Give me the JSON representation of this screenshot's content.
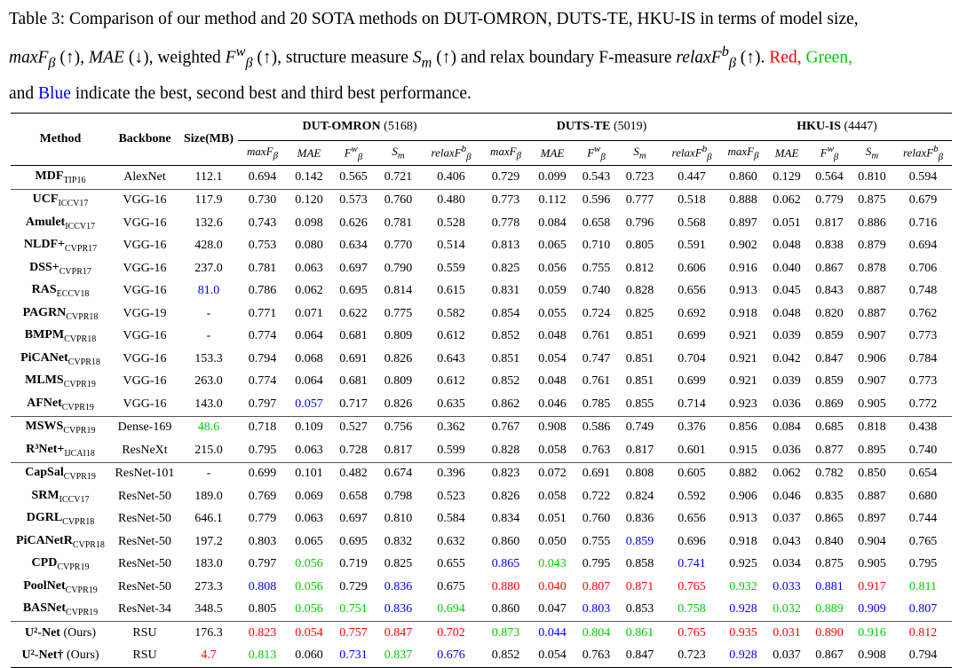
{
  "caption": {
    "prefix": "Table 3: Comparison of our method and 20 SOTA methods on DUT-OMRON, DUTS-TE, HKU-IS in terms of model size,",
    "m1": "maxF",
    "m1_sub": "β",
    "s1": " (↑), ",
    "m2": "MAE",
    "s2": " (↓), weighted ",
    "m3": "F",
    "m3_sup": "w",
    "m3_sub": "β",
    "s3": " (↑), structure measure ",
    "m4": "S",
    "m4_sub": "m",
    "s4": " (↑) and relax boundary F-measure ",
    "m5": "relaxF",
    "m5_sup": "b",
    "m5_sub": "β",
    "s5": " (↑). ",
    "red": "Red,",
    "green": "Green,",
    "line3_and": "and ",
    "blue": "Blue",
    "suffix": " indicate the best, second best and third best performance."
  },
  "table": {
    "col_method": "Method",
    "col_backbone": "Backbone",
    "col_size": "Size(MB)",
    "datasets": [
      {
        "name": "DUT-OMRON",
        "count": "(5168)"
      },
      {
        "name": "DUTS-TE",
        "count": "(5019)"
      },
      {
        "name": "HKU-IS",
        "count": "(4447)"
      }
    ],
    "metrics": [
      {
        "base": "maxF",
        "sup": "",
        "sub": "β"
      },
      {
        "base": "MAE",
        "sup": "",
        "sub": ""
      },
      {
        "base": "F",
        "sup": "w",
        "sub": "β"
      },
      {
        "base": "S",
        "sup": "",
        "sub": "m"
      },
      {
        "base": "relaxF",
        "sup": "b",
        "sub": "β"
      }
    ],
    "rows": [
      {
        "name": "MDF",
        "sub": "TIP16",
        "backbone": "AlexNet",
        "size": "112.1",
        "size_c": "",
        "v": [
          "0.694",
          "0.142",
          "0.565",
          "0.721",
          "0.406",
          "0.729",
          "0.099",
          "0.543",
          "0.723",
          "0.447",
          "0.860",
          "0.129",
          "0.564",
          "0.810",
          "0.594"
        ],
        "c": [
          "",
          "",
          "",
          "",
          "",
          "",
          "",
          "",
          "",
          "",
          "",
          "",
          "",
          "",
          ""
        ]
      },
      {
        "name": "UCF",
        "sub": "ICCV17",
        "backbone": "VGG-16",
        "size": "117.9",
        "size_c": "",
        "v": [
          "0.730",
          "0.120",
          "0.573",
          "0.760",
          "0.480",
          "0.773",
          "0.112",
          "0.596",
          "0.777",
          "0.518",
          "0.888",
          "0.062",
          "0.779",
          "0.875",
          "0.679"
        ],
        "c": [
          "",
          "",
          "",
          "",
          "",
          "",
          "",
          "",
          "",
          "",
          "",
          "",
          "",
          "",
          ""
        ]
      },
      {
        "name": "Amulet",
        "sub": "ICCV17",
        "backbone": "VGG-16",
        "size": "132.6",
        "size_c": "",
        "v": [
          "0.743",
          "0.098",
          "0.626",
          "0.781",
          "0.528",
          "0.778",
          "0.084",
          "0.658",
          "0.796",
          "0.568",
          "0.897",
          "0.051",
          "0.817",
          "0.886",
          "0.716"
        ],
        "c": [
          "",
          "",
          "",
          "",
          "",
          "",
          "",
          "",
          "",
          "",
          "",
          "",
          "",
          "",
          ""
        ]
      },
      {
        "name": "NLDF+",
        "sub": "CVPR17",
        "backbone": "VGG-16",
        "size": "428.0",
        "size_c": "",
        "v": [
          "0.753",
          "0.080",
          "0.634",
          "0.770",
          "0.514",
          "0.813",
          "0.065",
          "0.710",
          "0.805",
          "0.591",
          "0.902",
          "0.048",
          "0.838",
          "0.879",
          "0.694"
        ],
        "c": [
          "",
          "",
          "",
          "",
          "",
          "",
          "",
          "",
          "",
          "",
          "",
          "",
          "",
          "",
          ""
        ]
      },
      {
        "name": "DSS+",
        "sub": "CVPR17",
        "backbone": "VGG-16",
        "size": "237.0",
        "size_c": "",
        "v": [
          "0.781",
          "0.063",
          "0.697",
          "0.790",
          "0.559",
          "0.825",
          "0.056",
          "0.755",
          "0.812",
          "0.606",
          "0.916",
          "0.040",
          "0.867",
          "0.878",
          "0.706"
        ],
        "c": [
          "",
          "",
          "",
          "",
          "",
          "",
          "",
          "",
          "",
          "",
          "",
          "",
          "",
          "",
          ""
        ]
      },
      {
        "name": "RAS",
        "sub": "ECCV18",
        "backbone": "VGG-16",
        "size": "81.0",
        "size_c": "blue",
        "v": [
          "0.786",
          "0.062",
          "0.695",
          "0.814",
          "0.615",
          "0.831",
          "0.059",
          "0.740",
          "0.828",
          "0.656",
          "0.913",
          "0.045",
          "0.843",
          "0.887",
          "0.748"
        ],
        "c": [
          "",
          "",
          "",
          "",
          "",
          "",
          "",
          "",
          "",
          "",
          "",
          "",
          "",
          "",
          ""
        ]
      },
      {
        "name": "PAGRN",
        "sub": "CVPR18",
        "backbone": "VGG-19",
        "size": "-",
        "size_c": "",
        "v": [
          "0.771",
          "0.071",
          "0.622",
          "0.775",
          "0.582",
          "0.854",
          "0.055",
          "0.724",
          "0.825",
          "0.692",
          "0.918",
          "0.048",
          "0.820",
          "0.887",
          "0.762"
        ],
        "c": [
          "",
          "",
          "",
          "",
          "",
          "",
          "",
          "",
          "",
          "",
          "",
          "",
          "",
          "",
          ""
        ]
      },
      {
        "name": "BMPM",
        "sub": "CVPR18",
        "backbone": "VGG-16",
        "size": "-",
        "size_c": "",
        "v": [
          "0.774",
          "0.064",
          "0.681",
          "0.809",
          "0.612",
          "0.852",
          "0.048",
          "0.761",
          "0.851",
          "0.699",
          "0.921",
          "0.039",
          "0.859",
          "0.907",
          "0.773"
        ],
        "c": [
          "",
          "",
          "",
          "",
          "",
          "",
          "",
          "",
          "",
          "",
          "",
          "",
          "",
          "",
          ""
        ]
      },
      {
        "name": "PiCANet",
        "sub": "CVPR18",
        "backbone": "VGG-16",
        "size": "153.3",
        "size_c": "",
        "v": [
          "0.794",
          "0.068",
          "0.691",
          "0.826",
          "0.643",
          "0.851",
          "0.054",
          "0.747",
          "0.851",
          "0.704",
          "0.921",
          "0.042",
          "0.847",
          "0.906",
          "0.784"
        ],
        "c": [
          "",
          "",
          "",
          "",
          "",
          "",
          "",
          "",
          "",
          "",
          "",
          "",
          "",
          "",
          ""
        ]
      },
      {
        "name": "MLMS",
        "sub": "CVPR19",
        "backbone": "VGG-16",
        "size": "263.0",
        "size_c": "",
        "v": [
          "0.774",
          "0.064",
          "0.681",
          "0.809",
          "0.612",
          "0.852",
          "0.048",
          "0.761",
          "0.851",
          "0.699",
          "0.921",
          "0.039",
          "0.859",
          "0.907",
          "0.773"
        ],
        "c": [
          "",
          "",
          "",
          "",
          "",
          "",
          "",
          "",
          "",
          "",
          "",
          "",
          "",
          "",
          ""
        ]
      },
      {
        "name": "AFNet",
        "sub": "CVPR19",
        "backbone": "VGG-16",
        "size": "143.0",
        "size_c": "",
        "v": [
          "0.797",
          "0.057",
          "0.717",
          "0.826",
          "0.635",
          "0.862",
          "0.046",
          "0.785",
          "0.855",
          "0.714",
          "0.923",
          "0.036",
          "0.869",
          "0.905",
          "0.772"
        ],
        "c": [
          "",
          "blue",
          "",
          "",
          "",
          "",
          "",
          "",
          "",
          "",
          "",
          "",
          "",
          "",
          ""
        ]
      },
      {
        "name": "MSWS",
        "sub": "CVPR19",
        "backbone": "Dense-169",
        "size": "48.6",
        "size_c": "green",
        "v": [
          "0.718",
          "0.109",
          "0.527",
          "0.756",
          "0.362",
          "0.767",
          "0.908",
          "0.586",
          "0.749",
          "0.376",
          "0.856",
          "0.084",
          "0.685",
          "0.818",
          "0.438"
        ],
        "c": [
          "",
          "",
          "",
          "",
          "",
          "",
          "",
          "",
          "",
          "",
          "",
          "",
          "",
          "",
          ""
        ]
      },
      {
        "name": "R³Net+",
        "sub": "IJCAI18",
        "backbone": "ResNeXt",
        "size": "215.0",
        "size_c": "",
        "v": [
          "0.795",
          "0.063",
          "0.728",
          "0.817",
          "0.599",
          "0.828",
          "0.058",
          "0.763",
          "0.817",
          "0.601",
          "0.915",
          "0.036",
          "0.877",
          "0.895",
          "0.740"
        ],
        "c": [
          "",
          "",
          "",
          "",
          "",
          "",
          "",
          "",
          "",
          "",
          "",
          "",
          "",
          "",
          ""
        ]
      },
      {
        "name": "CapSal",
        "sub": "CVPR19",
        "backbone": "ResNet-101",
        "size": "-",
        "size_c": "",
        "v": [
          "0.699",
          "0.101",
          "0.482",
          "0.674",
          "0.396",
          "0.823",
          "0.072",
          "0.691",
          "0.808",
          "0.605",
          "0.882",
          "0.062",
          "0.782",
          "0.850",
          "0.654"
        ],
        "c": [
          "",
          "",
          "",
          "",
          "",
          "",
          "",
          "",
          "",
          "",
          "",
          "",
          "",
          "",
          ""
        ]
      },
      {
        "name": "SRM",
        "sub": "ICCV17",
        "backbone": "ResNet-50",
        "size": "189.0",
        "size_c": "",
        "v": [
          "0.769",
          "0.069",
          "0.658",
          "0.798",
          "0.523",
          "0.826",
          "0.058",
          "0.722",
          "0.824",
          "0.592",
          "0.906",
          "0.046",
          "0.835",
          "0.887",
          "0.680"
        ],
        "c": [
          "",
          "",
          "",
          "",
          "",
          "",
          "",
          "",
          "",
          "",
          "",
          "",
          "",
          "",
          ""
        ]
      },
      {
        "name": "DGRL",
        "sub": "CVPR18",
        "backbone": "ResNet-50",
        "size": "646.1",
        "size_c": "",
        "v": [
          "0.779",
          "0.063",
          "0.697",
          "0.810",
          "0.584",
          "0.834",
          "0.051",
          "0.760",
          "0.836",
          "0.656",
          "0.913",
          "0.037",
          "0.865",
          "0.897",
          "0.744"
        ],
        "c": [
          "",
          "",
          "",
          "",
          "",
          "",
          "",
          "",
          "",
          "",
          "",
          "",
          "",
          "",
          ""
        ]
      },
      {
        "name": "PiCANetR",
        "sub": "CVPR18",
        "backbone": "ResNet-50",
        "size": "197.2",
        "size_c": "",
        "v": [
          "0.803",
          "0.065",
          "0.695",
          "0.832",
          "0.632",
          "0.860",
          "0.050",
          "0.755",
          "0.859",
          "0.696",
          "0.918",
          "0.043",
          "0.840",
          "0.904",
          "0.765"
        ],
        "c": [
          "",
          "",
          "",
          "",
          "",
          "",
          "",
          "",
          "blue",
          "",
          "",
          "",
          "",
          "",
          ""
        ]
      },
      {
        "name": "CPD",
        "sub": "CVPR19",
        "backbone": "ResNet-50",
        "size": "183.0",
        "size_c": "",
        "v": [
          "0.797",
          "0.056",
          "0.719",
          "0.825",
          "0.655",
          "0.865",
          "0.043",
          "0.795",
          "0.858",
          "0.741",
          "0.925",
          "0.034",
          "0.875",
          "0.905",
          "0.795"
        ],
        "c": [
          "",
          "green",
          "",
          "",
          "",
          "blue",
          "green",
          "",
          "",
          "blue",
          "",
          "",
          "",
          "",
          ""
        ]
      },
      {
        "name": "PoolNet",
        "sub": "CVPR19",
        "backbone": "ResNet-50",
        "size": "273.3",
        "size_c": "",
        "v": [
          "0.808",
          "0.056",
          "0.729",
          "0.836",
          "0.675",
          "0.880",
          "0.040",
          "0.807",
          "0.871",
          "0.765",
          "0.932",
          "0.033",
          "0.881",
          "0.917",
          "0.811"
        ],
        "c": [
          "blue",
          "green",
          "",
          "blue",
          "",
          "red",
          "red",
          "red",
          "red",
          "red",
          "green",
          "blue",
          "blue",
          "red",
          "green"
        ]
      },
      {
        "name": "BASNet",
        "sub": "CVPR19",
        "backbone": "ResNet-34",
        "size": "348.5",
        "size_c": "",
        "v": [
          "0.805",
          "0.056",
          "0.751",
          "0.836",
          "0.694",
          "0.860",
          "0.047",
          "0.803",
          "0.853",
          "0.758",
          "0.928",
          "0.032",
          "0.889",
          "0.909",
          "0.807"
        ],
        "c": [
          "",
          "green",
          "green",
          "blue",
          "green",
          "",
          "",
          "blue",
          "",
          "green",
          "blue",
          "green",
          "green",
          "blue",
          "blue"
        ]
      },
      {
        "name": "U²-Net",
        "sub": "",
        "suffix": " (Ours)",
        "backbone": "RSU",
        "size": "176.3",
        "size_c": "",
        "v": [
          "0.823",
          "0.054",
          "0.757",
          "0.847",
          "0.702",
          "0.873",
          "0.044",
          "0.804",
          "0.861",
          "0.765",
          "0.935",
          "0.031",
          "0.890",
          "0.916",
          "0.812"
        ],
        "c": [
          "red",
          "red",
          "red",
          "red",
          "red",
          "green",
          "blue",
          "green",
          "green",
          "red",
          "red",
          "red",
          "red",
          "green",
          "red"
        ]
      },
      {
        "name": "U²-Net†",
        "sub": "",
        "suffix": " (Ours)",
        "backbone": "RSU",
        "size": "4.7",
        "size_c": "red",
        "v": [
          "0.813",
          "0.060",
          "0.731",
          "0.837",
          "0.676",
          "0.852",
          "0.054",
          "0.763",
          "0.847",
          "0.723",
          "0.928",
          "0.037",
          "0.867",
          "0.908",
          "0.794"
        ],
        "c": [
          "green",
          "",
          "blue",
          "green",
          "blue",
          "",
          "",
          "",
          "",
          "",
          "blue",
          "",
          "",
          "",
          ""
        ]
      }
    ],
    "group_breaks_before": [
      1,
      11,
      13,
      20
    ]
  }
}
